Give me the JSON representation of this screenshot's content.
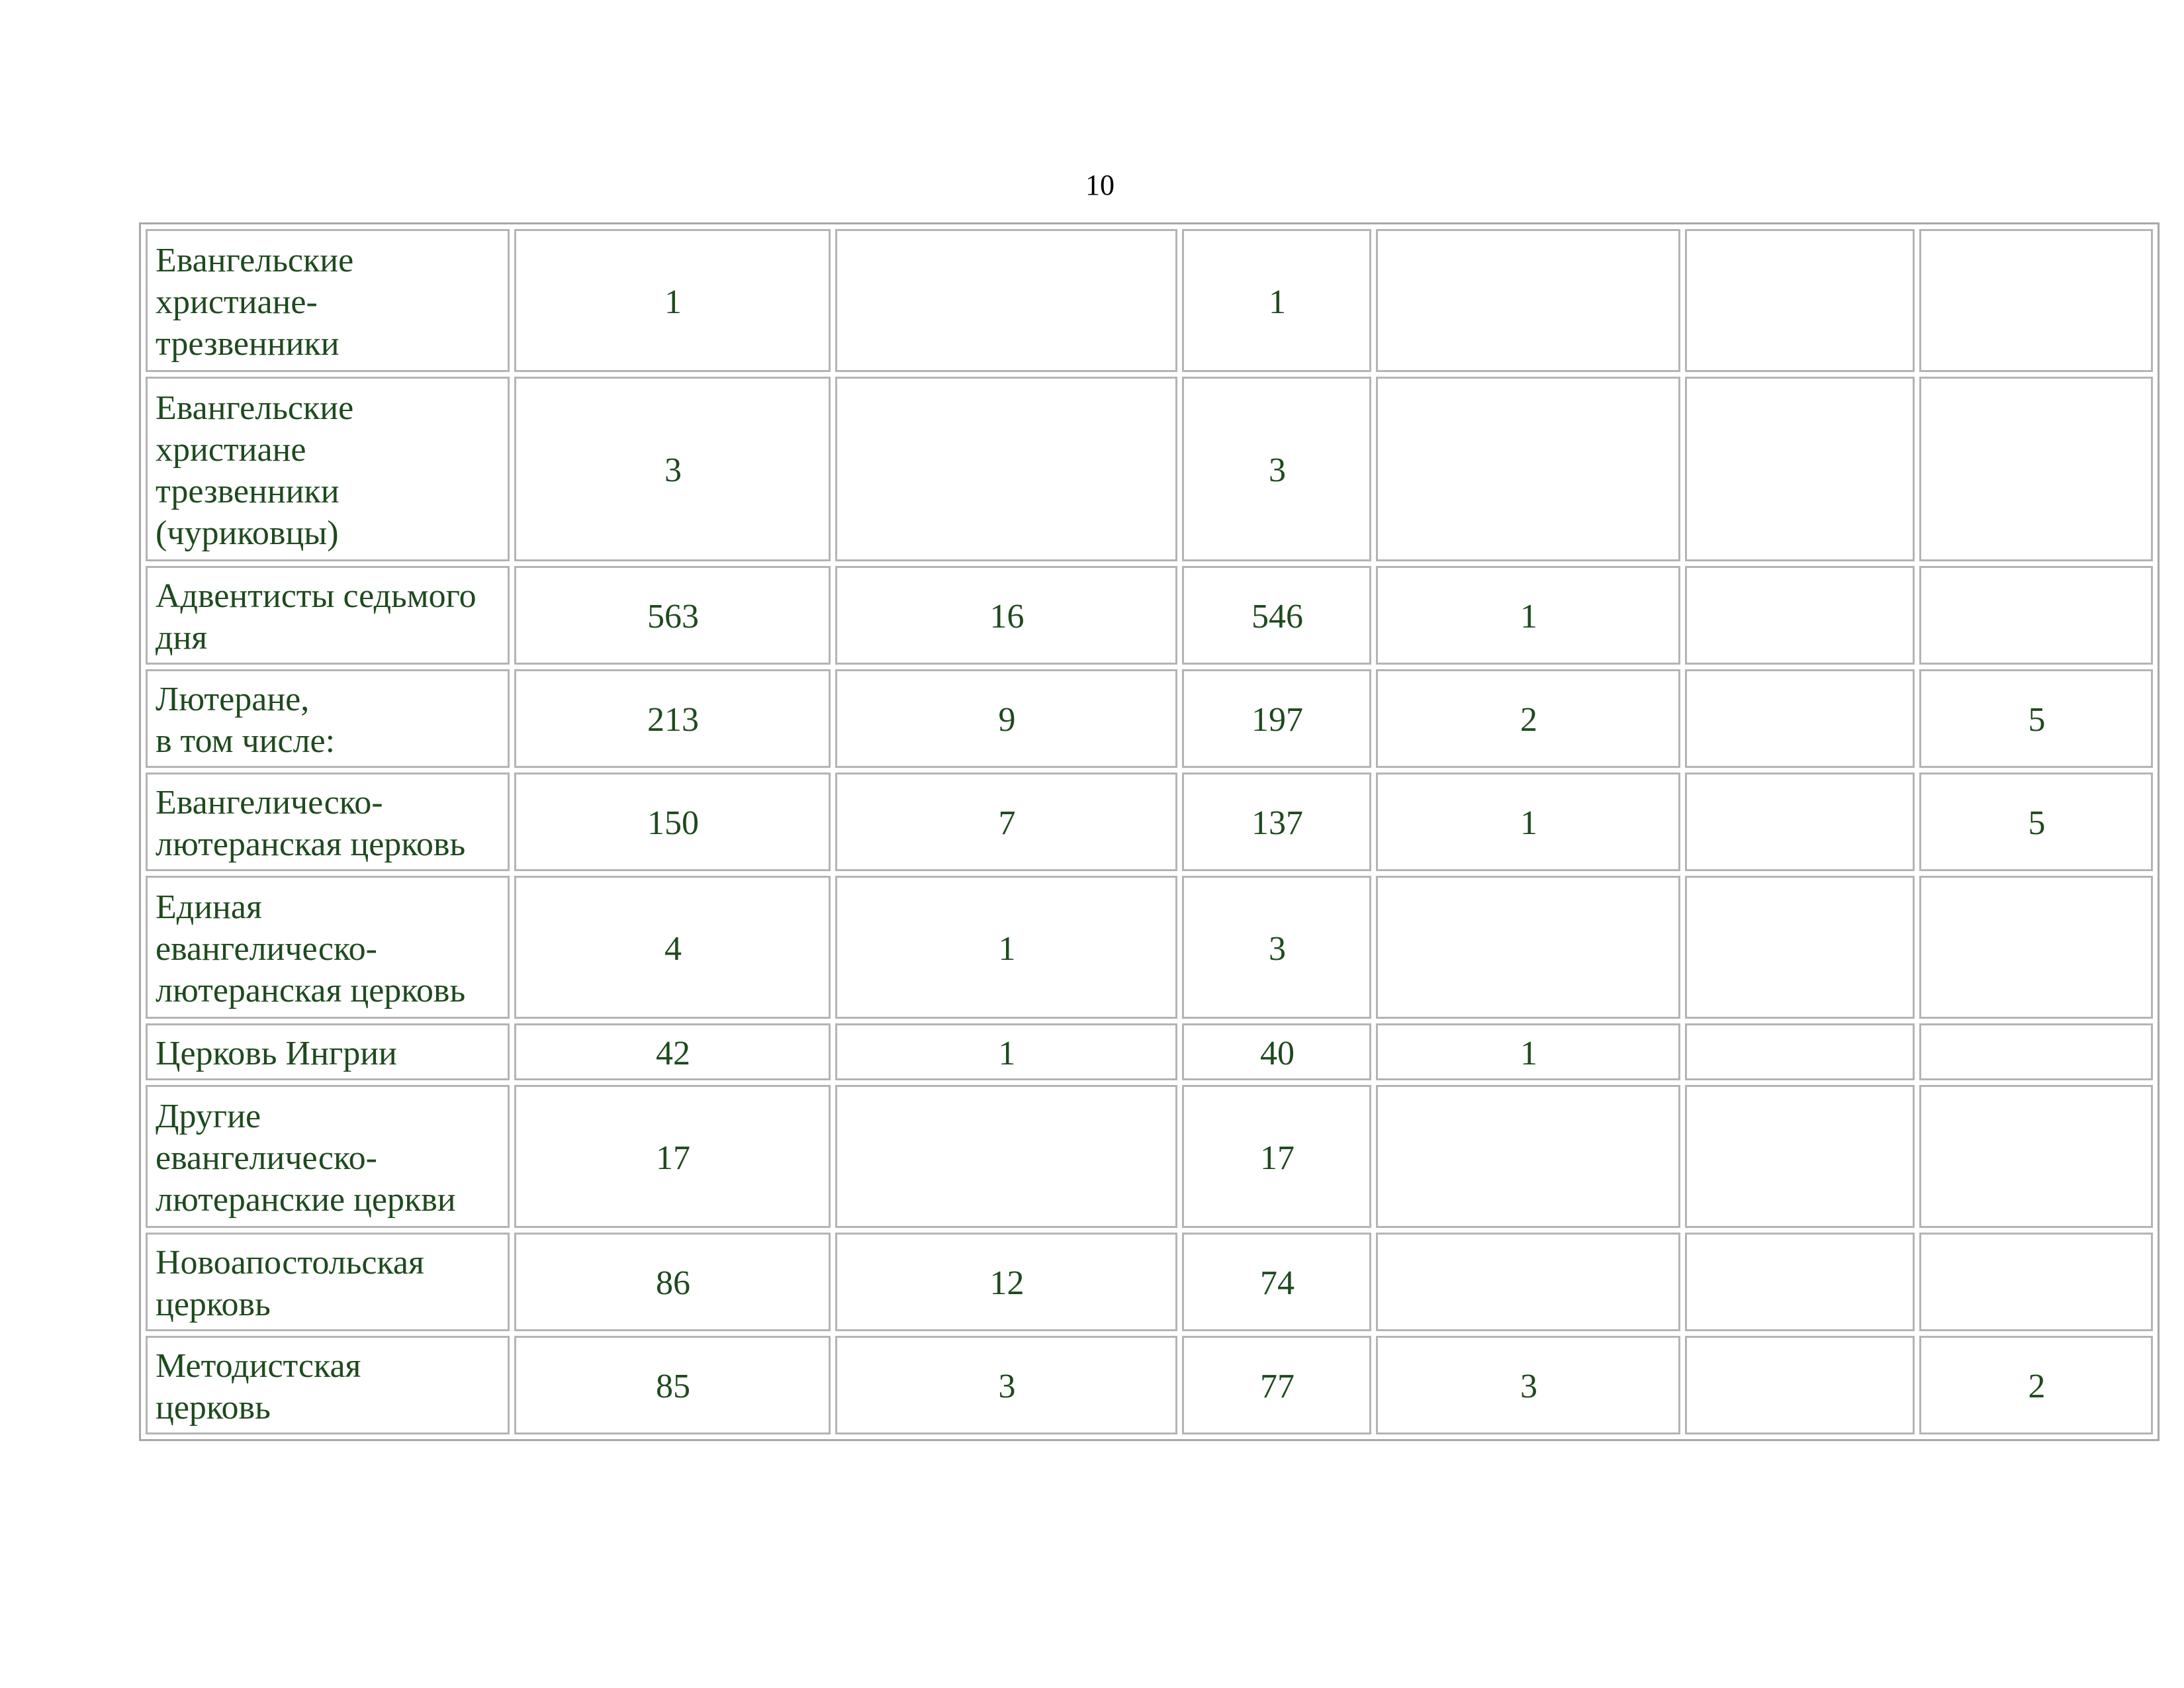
{
  "page": {
    "number": "10"
  },
  "table": {
    "rows": [
      {
        "name": "Евангельские\nхристиане-\nтрезвенники",
        "cells": [
          "1",
          "",
          "1",
          "",
          "",
          ""
        ]
      },
      {
        "name": "Евангельские\nхристиане\nтрезвенники\n(чуриковцы)",
        "cells": [
          "3",
          "",
          "3",
          "",
          "",
          ""
        ]
      },
      {
        "name": "Адвентисты седьмого\nдня",
        "cells": [
          "563",
          "16",
          "546",
          "1",
          "",
          ""
        ]
      },
      {
        "name": "Лютеране,\nв том числе:",
        "cells": [
          "213",
          "9",
          "197",
          "2",
          "",
          "5"
        ]
      },
      {
        "name": "Евангелическо-\nлютеранская церковь",
        "cells": [
          "150",
          "7",
          "137",
          "1",
          "",
          "5"
        ]
      },
      {
        "name": "Единая\nевангелическо-\nлютеранская церковь",
        "cells": [
          "4",
          "1",
          "3",
          "",
          "",
          ""
        ]
      },
      {
        "name": "Церковь Ингрии",
        "cells": [
          "42",
          "1",
          "40",
          "1",
          "",
          ""
        ]
      },
      {
        "name": "Другие\nевангелическо-\nлютеранские церкви",
        "cells": [
          "17",
          "",
          "17",
          "",
          "",
          ""
        ]
      },
      {
        "name": "Новоапостольская\nцерковь",
        "cells": [
          "86",
          "12",
          "74",
          "",
          "",
          ""
        ]
      },
      {
        "name": "Методистская\nцерковь",
        "cells": [
          "85",
          "3",
          "77",
          "3",
          "",
          "2"
        ]
      }
    ]
  },
  "colors": {
    "text": "#1e4a1e",
    "border": "#b4b4b4"
  }
}
